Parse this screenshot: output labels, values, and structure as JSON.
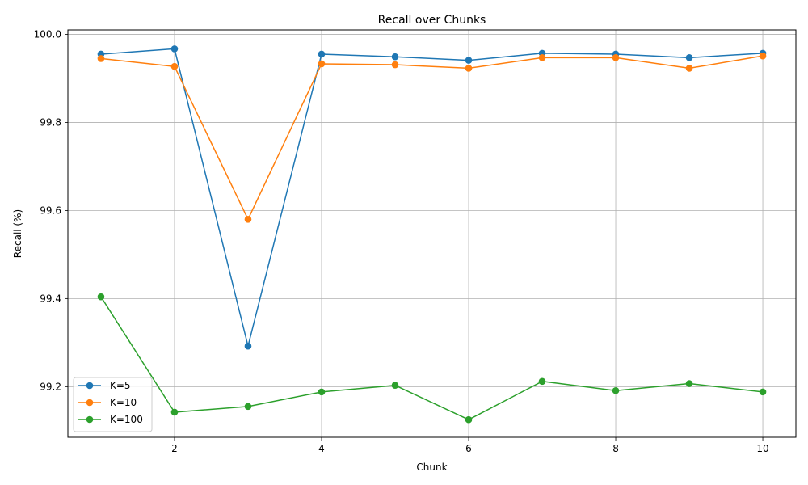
{
  "chart_data": {
    "type": "line",
    "title": "Recall over Chunks",
    "xlabel": "Chunk",
    "ylabel": "Recall (%)",
    "x": [
      1,
      2,
      3,
      4,
      5,
      6,
      7,
      8,
      9,
      10
    ],
    "xlim": [
      0.55,
      10.45
    ],
    "ylim": [
      99.085,
      100.01
    ],
    "xticks": [
      2,
      4,
      6,
      8,
      10
    ],
    "yticks": [
      99.2,
      99.4,
      99.6,
      99.8,
      100.0
    ],
    "ytick_labels": [
      "99.2",
      "99.4",
      "99.6",
      "99.8",
      "100.0"
    ],
    "grid": true,
    "legend_position": "lower-left",
    "series": [
      {
        "name": "K=5",
        "color": "#1f77b4",
        "values": [
          99.955,
          99.967,
          99.292,
          99.955,
          99.949,
          99.941,
          99.957,
          99.955,
          99.947,
          99.957
        ]
      },
      {
        "name": "K=10",
        "color": "#ff7f0e",
        "values": [
          99.945,
          99.927,
          99.58,
          99.933,
          99.931,
          99.923,
          99.947,
          99.947,
          99.923,
          99.951
        ]
      },
      {
        "name": "K=100",
        "color": "#2ca02c",
        "values": [
          99.404,
          99.142,
          99.155,
          99.188,
          99.203,
          99.125,
          99.212,
          99.191,
          99.207,
          99.188
        ]
      }
    ]
  }
}
